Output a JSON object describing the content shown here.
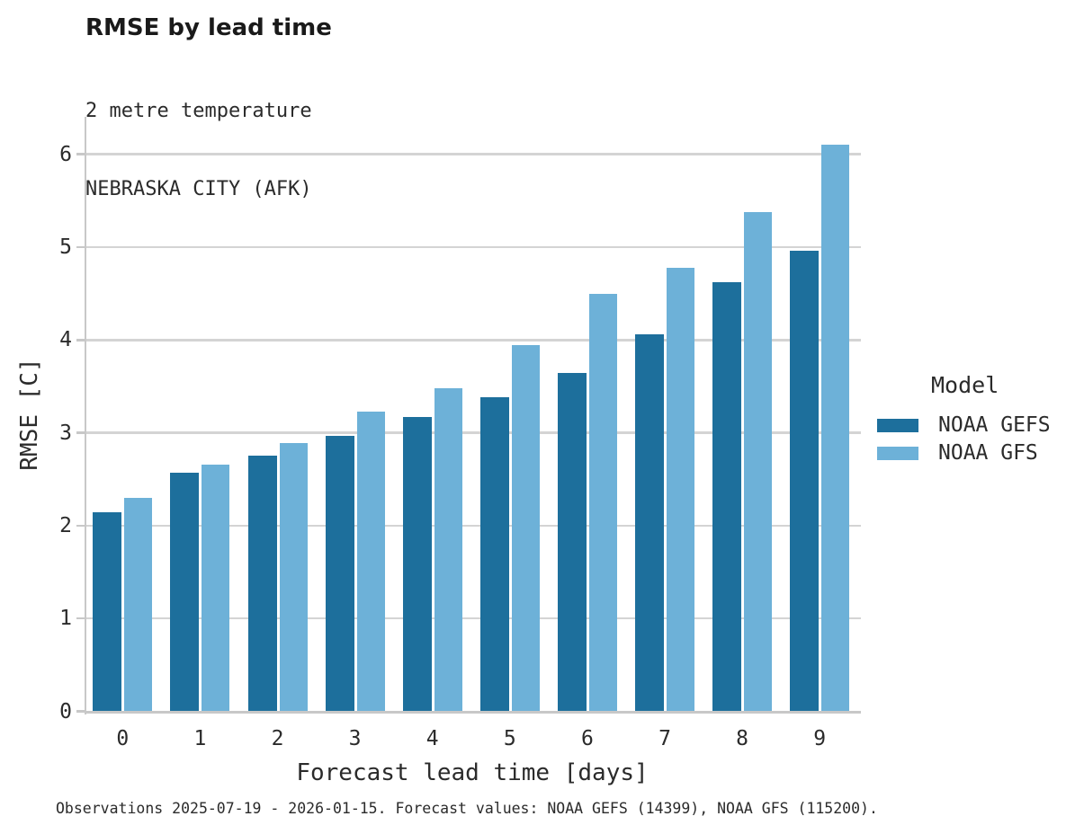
{
  "header": {
    "title": "RMSE by lead time",
    "subtitle_lines": [
      "2 metre temperature",
      "NEBRASKA CITY (AFK)"
    ]
  },
  "chart_data": {
    "type": "bar",
    "title": "RMSE by lead time",
    "subtitle": "2 metre temperature",
    "station": "NEBRASKA CITY (AFK)",
    "categories": [
      "0",
      "1",
      "2",
      "3",
      "4",
      "5",
      "6",
      "7",
      "8",
      "9"
    ],
    "series": [
      {
        "name": "NOAA GEFS",
        "color": "#1d6f9c",
        "values": [
          2.14,
          2.57,
          2.75,
          2.97,
          3.17,
          3.38,
          3.64,
          4.06,
          4.62,
          4.96
        ]
      },
      {
        "name": "NOAA GFS",
        "color": "#6db1d8",
        "values": [
          2.3,
          2.66,
          2.89,
          3.23,
          3.48,
          3.94,
          4.5,
          4.78,
          5.38,
          6.1
        ]
      }
    ],
    "xlabel": "Forecast lead time [days]",
    "ylabel": "RMSE [C]",
    "ylim": [
      0,
      6.4
    ],
    "yticks": [
      0,
      1,
      2,
      3,
      4,
      5,
      6
    ],
    "grid": "horizontal",
    "legend_position": "right",
    "legend_title": "Model"
  },
  "legend": {
    "title": "Model",
    "entries": [
      {
        "label": "NOAA GEFS",
        "color": "#1d6f9c"
      },
      {
        "label": "NOAA GFS",
        "color": "#6db1d8"
      }
    ]
  },
  "caption": "Observations 2025-07-19 - 2026-01-15. Forecast values: NOAA GEFS (14399), NOAA GFS (115200)."
}
